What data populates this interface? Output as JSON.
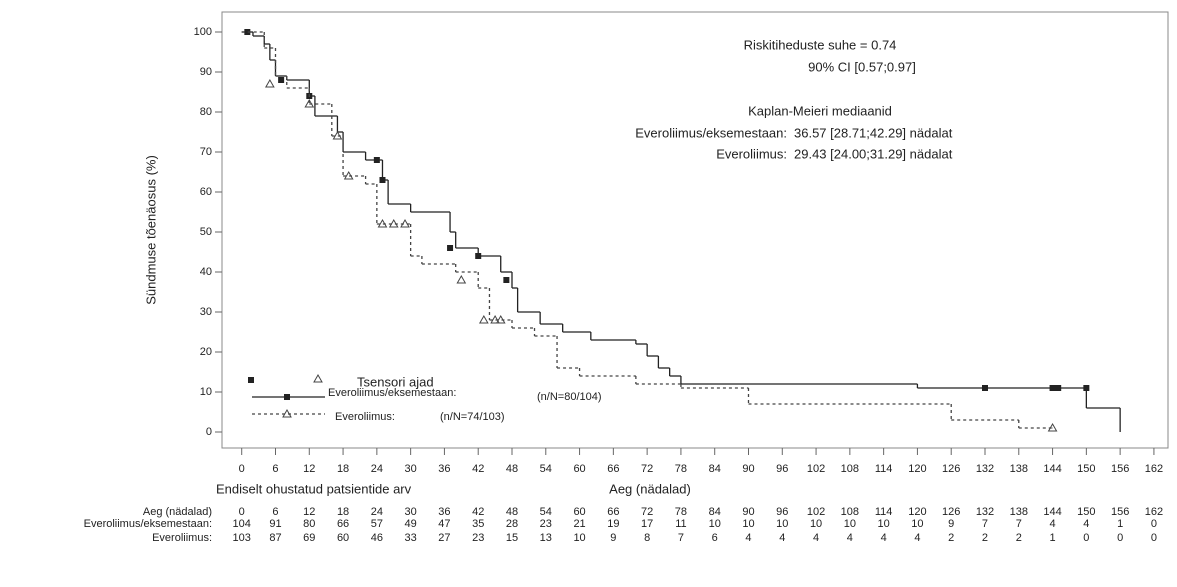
{
  "chart_data": {
    "type": "step",
    "title_lines": [
      "Riskitiheduste suhe  = 0.74",
      "90% CI [0.57;0.97]"
    ],
    "median_title": "Kaplan-Meieri mediaanid",
    "median_lines": [
      {
        "label": "Everoliimus/eksemestaan:",
        "text": "36.57 [28.71;42.29] nädalat"
      },
      {
        "label": "Everoliimus:",
        "text": "29.43 [24.00;31.29]  nädalat"
      }
    ],
    "x_label": "Aeg (nädalad)",
    "y_label": "Sündmuse tõenäosus (%)",
    "xlim": [
      -3.5,
      164.5
    ],
    "ylim": [
      -4,
      105
    ],
    "xticks": [
      0,
      6,
      12,
      18,
      24,
      30,
      36,
      42,
      48,
      54,
      60,
      66,
      72,
      78,
      84,
      90,
      96,
      102,
      108,
      114,
      120,
      126,
      132,
      138,
      144,
      150,
      156,
      162
    ],
    "yticks": [
      0,
      10,
      20,
      30,
      40,
      50,
      60,
      70,
      80,
      90,
      100
    ],
    "legend_title": "Tsensori ajad",
    "series": [
      {
        "name": "Everoliimus/eksemestaan:",
        "n_label": "(n/N=80/104)",
        "color": "#222",
        "dash": "none",
        "marker": "square",
        "x": [
          0,
          2,
          4,
          5,
          6,
          8,
          12,
          13,
          17,
          18,
          22,
          25,
          26,
          30,
          37,
          38,
          42,
          46,
          48,
          49,
          53,
          57,
          62,
          70,
          72,
          74,
          76,
          78,
          120,
          150,
          156
        ],
        "values": [
          100,
          99,
          97,
          93,
          89,
          88,
          84,
          79,
          75,
          70,
          68,
          63,
          57,
          55,
          50,
          46,
          44,
          40,
          36,
          30,
          27,
          25,
          23,
          22,
          19,
          16,
          14,
          12,
          11,
          6,
          0
        ],
        "censored": {
          "x": [
            1,
            7,
            12,
            24,
            25,
            37,
            42,
            47,
            132,
            144,
            145,
            150
          ],
          "values": [
            100,
            88,
            84,
            68,
            63,
            46,
            44,
            38,
            11,
            11,
            11,
            11
          ]
        }
      },
      {
        "name": "Everoliimus:",
        "n_label": "(n/N=74/103)",
        "color": "#444",
        "dash": "3,3",
        "marker": "triangle",
        "x": [
          0,
          4,
          6,
          8,
          12,
          16,
          18,
          22,
          24,
          30,
          32,
          38,
          42,
          44,
          48,
          52,
          56,
          60,
          70,
          78,
          90,
          126,
          138,
          144
        ],
        "values": [
          100,
          96,
          89,
          86,
          82,
          74,
          64,
          62,
          52,
          44,
          42,
          40,
          36,
          28,
          26,
          24,
          16,
          14,
          12,
          11,
          7,
          3,
          1,
          1
        ],
        "censored": {
          "x": [
            5,
            12,
            17,
            19,
            25,
            27,
            29,
            39,
            43,
            45,
            46,
            144
          ],
          "values": [
            87,
            82,
            74,
            64,
            52,
            52,
            52,
            38,
            28,
            28,
            28,
            1
          ]
        }
      }
    ],
    "risk_table": {
      "title": "Endiselt ohustatud patsientide arv",
      "time_label": "Aeg (nädalad)",
      "times": [
        0,
        6,
        12,
        18,
        24,
        30,
        36,
        42,
        48,
        54,
        60,
        66,
        72,
        78,
        84,
        90,
        96,
        102,
        108,
        114,
        120,
        126,
        132,
        138,
        144,
        150,
        156,
        162
      ],
      "rows": [
        {
          "label": "Everoliimus/eksemestaan:",
          "counts": [
            104,
            91,
            80,
            66,
            57,
            49,
            47,
            35,
            28,
            23,
            21,
            19,
            17,
            11,
            10,
            10,
            10,
            10,
            10,
            10,
            10,
            9,
            7,
            7,
            4,
            4,
            1,
            0
          ]
        },
        {
          "label": "Everoliimus:",
          "counts": [
            103,
            87,
            69,
            60,
            46,
            33,
            27,
            23,
            15,
            13,
            10,
            9,
            8,
            7,
            6,
            4,
            4,
            4,
            4,
            4,
            4,
            2,
            2,
            2,
            1,
            0,
            0,
            0
          ]
        }
      ]
    }
  }
}
